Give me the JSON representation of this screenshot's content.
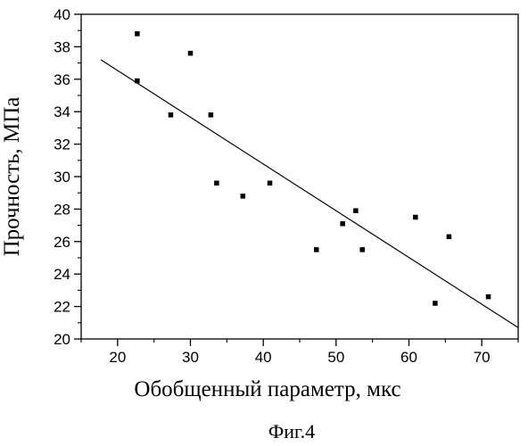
{
  "chart_data": {
    "type": "scatter",
    "title": "",
    "xlabel": "Обобщенный параметр, мкс",
    "ylabel": "Прочность, МПа",
    "caption": "Фиг.4",
    "xlim": [
      15,
      75
    ],
    "ylim": [
      20,
      40
    ],
    "x_ticks": [
      20,
      30,
      40,
      50,
      60,
      70
    ],
    "y_ticks": [
      20,
      22,
      24,
      26,
      28,
      30,
      32,
      34,
      36,
      38,
      40
    ],
    "x_tick_labels": [
      "20",
      "30",
      "40",
      "50",
      "60",
      "70"
    ],
    "y_tick_labels": [
      "20",
      "22",
      "24",
      "26",
      "28",
      "30",
      "32",
      "34",
      "36",
      "38",
      "40"
    ],
    "grid": false,
    "legend": "none",
    "marker_color": "#000000",
    "line_color": "#000000",
    "points": [
      {
        "x": 22.7,
        "y": 38.8
      },
      {
        "x": 22.7,
        "y": 35.9
      },
      {
        "x": 27.3,
        "y": 33.8
      },
      {
        "x": 30.0,
        "y": 37.6
      },
      {
        "x": 32.8,
        "y": 33.8
      },
      {
        "x": 33.6,
        "y": 29.6
      },
      {
        "x": 37.2,
        "y": 28.8
      },
      {
        "x": 40.9,
        "y": 29.6
      },
      {
        "x": 47.3,
        "y": 25.5
      },
      {
        "x": 50.9,
        "y": 27.1
      },
      {
        "x": 52.7,
        "y": 27.9
      },
      {
        "x": 53.6,
        "y": 25.5
      },
      {
        "x": 60.9,
        "y": 27.5
      },
      {
        "x": 63.6,
        "y": 22.2
      },
      {
        "x": 65.5,
        "y": 26.3
      },
      {
        "x": 70.9,
        "y": 22.6
      }
    ],
    "trendline": {
      "x": [
        17.7,
        75.0
      ],
      "y": [
        37.2,
        20.7
      ]
    }
  }
}
